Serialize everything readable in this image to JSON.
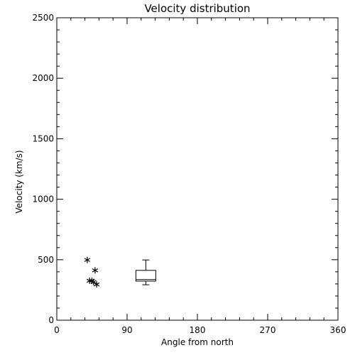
{
  "chart_data": {
    "title": "Velocity distribution",
    "xlabel": "Angle from north",
    "ylabel": "Velocity (km/s)",
    "xlim": [
      0,
      360
    ],
    "ylim": [
      0,
      2500
    ],
    "xticks": [
      0,
      90,
      180,
      270,
      360
    ],
    "yticks": [
      0,
      500,
      1000,
      1500,
      2000,
      2500
    ],
    "grid": false,
    "series": [
      {
        "type": "scatter",
        "marker": "asterisk",
        "points": [
          {
            "x": 39,
            "y": 498
          },
          {
            "x": 49,
            "y": 412
          },
          {
            "x": 42,
            "y": 326
          },
          {
            "x": 45,
            "y": 326
          },
          {
            "x": 47,
            "y": 316
          },
          {
            "x": 51,
            "y": 296
          }
        ]
      },
      {
        "type": "box",
        "x": 114,
        "min": 293,
        "q1": 323,
        "median": 336,
        "q3": 412,
        "max": 498
      }
    ],
    "color": "#000000"
  }
}
